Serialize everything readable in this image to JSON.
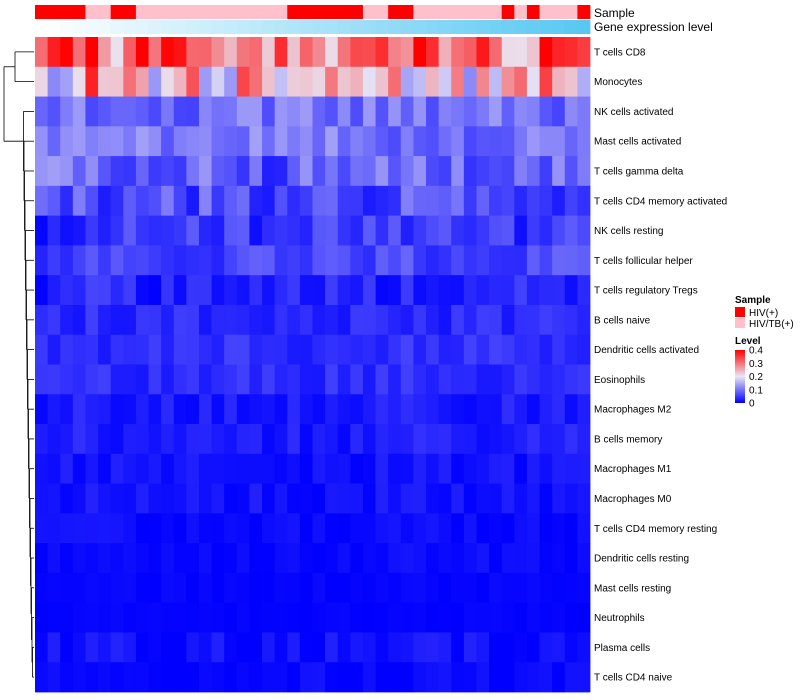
{
  "chart_data": {
    "type": "heatmap",
    "title": "",
    "annotation_labels": {
      "sample": "Sample",
      "gene": "Gene expression level"
    },
    "rows": [
      "T cells CD8",
      "Monocytes",
      "NK cells activated",
      "Mast cells activated",
      "T cells gamma delta",
      "T cells CD4 memory activated",
      "NK cells resting",
      "T cells follicular helper",
      "T cells regulatory  Tregs",
      "B cells naive",
      "Dendritic cells activated",
      "Eosinophils",
      "Macrophages M2",
      "B cells memory",
      "Macrophages M1",
      "Macrophages M0",
      "T cells CD4 memory resting",
      "Dendritic cells resting",
      "Mast cells resting",
      "Neutrophils",
      "Plasma cells",
      "T cells CD4 naive"
    ],
    "n_columns": 44,
    "sample_annotation": [
      "HIV(+)",
      "HIV(+)",
      "HIV(+)",
      "HIV(+)",
      "HIV/TB(+)",
      "HIV/TB(+)",
      "HIV(+)",
      "HIV(+)",
      "HIV/TB(+)",
      "HIV/TB(+)",
      "HIV/TB(+)",
      "HIV/TB(+)",
      "HIV/TB(+)",
      "HIV/TB(+)",
      "HIV/TB(+)",
      "HIV/TB(+)",
      "HIV/TB(+)",
      "HIV/TB(+)",
      "HIV/TB(+)",
      "HIV/TB(+)",
      "HIV(+)",
      "HIV(+)",
      "HIV(+)",
      "HIV(+)",
      "HIV(+)",
      "HIV(+)",
      "HIV/TB(+)",
      "HIV/TB(+)",
      "HIV(+)",
      "HIV(+)",
      "HIV/TB(+)",
      "HIV/TB(+)",
      "HIV/TB(+)",
      "HIV/TB(+)",
      "HIV/TB(+)",
      "HIV/TB(+)",
      "HIV/TB(+)",
      "HIV(+)",
      "HIV/TB(+)",
      "HIV(+)",
      "HIV/TB(+)",
      "HIV/TB(+)",
      "HIV/TB(+)",
      "HIV(+)"
    ],
    "row_baseline": [
      0.3,
      0.21,
      0.095,
      0.1,
      0.08,
      0.065,
      0.045,
      0.06,
      0.03,
      0.035,
      0.04,
      0.04,
      0.025,
      0.025,
      0.015,
      0.015,
      0.008,
      0.008,
      0.004,
      0.003,
      0.012,
      0.006
    ],
    "row_spread": [
      0.1,
      0.1,
      0.04,
      0.04,
      0.06,
      0.05,
      0.04,
      0.03,
      0.03,
      0.02,
      0.02,
      0.02,
      0.02,
      0.02,
      0.015,
      0.015,
      0.012,
      0.01,
      0.005,
      0.004,
      0.02,
      0.012
    ],
    "legend": {
      "sample_title": "Sample",
      "sample_items": [
        {
          "label": "HIV(+)",
          "color": "#ff0000"
        },
        {
          "label": "HIV/TB(+)",
          "color": "#ffc0cb"
        }
      ],
      "level_title": "Level",
      "level_ticks": [
        "0.4",
        "0.3",
        "0.2",
        "0.1",
        "0"
      ],
      "level_range": [
        0,
        0.4
      ]
    },
    "colors": {
      "low": "#0000ff",
      "mid": "#eae6f4",
      "high": "#ff0000",
      "gene_from": "#ffffff",
      "gene_to": "#58c8f2"
    }
  }
}
